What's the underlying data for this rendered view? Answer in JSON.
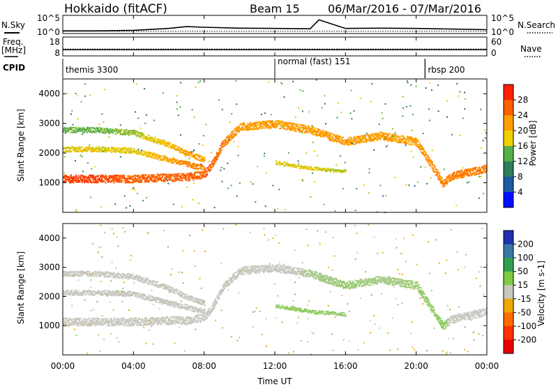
{
  "header": {
    "title": "Hokkaido (fitACF)",
    "beam_label": "Beam 15",
    "date_range": "06/Mar/2016 - 07/Mar/2016"
  },
  "labels": {
    "nsky": "N.Sky",
    "freq": "Freq.",
    "freq_unit": "[MHz]",
    "cpid": "CPID",
    "nsearch": "N.Search",
    "nave": "Nave",
    "slant_range": "Slant Range [km]",
    "time_axis": "Time UT"
  },
  "chart_data": [
    {
      "type": "line",
      "panel": "noise",
      "left_ticks": [
        "10^5",
        "10^0"
      ],
      "right_ticks": [
        "10^5",
        "10^0"
      ],
      "x": [
        "00:00",
        "02:00",
        "04:00",
        "06:00",
        "07:00",
        "08:00",
        "10:00",
        "12:00",
        "14:00",
        "14:30",
        "16:00",
        "18:00",
        "20:00",
        "22:00",
        "24:00"
      ],
      "series": [
        {
          "name": "N.Sky",
          "values": [
            0.4,
            0.4,
            0.6,
            1.2,
            1.8,
            1.6,
            1.3,
            1.2,
            1.1,
            4.0,
            1.2,
            1.3,
            1.2,
            1.0,
            0.8
          ]
        },
        {
          "name": "N.Search",
          "values": [
            0.3,
            0.3,
            0.3,
            0.3,
            0.3,
            0.3,
            0.3,
            0.3,
            0.3,
            0.3,
            0.3,
            0.3,
            0.3,
            0.3,
            0.3
          ]
        }
      ]
    },
    {
      "type": "line",
      "panel": "frequency",
      "left_ticks": [
        "18",
        "8"
      ],
      "right_ticks": [
        "60",
        "0"
      ],
      "series": [
        {
          "name": "Freq.",
          "value_mhz": 11
        },
        {
          "name": "Nave",
          "value": 20
        }
      ]
    },
    {
      "type": "table",
      "panel": "cpid",
      "segments": [
        {
          "start": "00:00",
          "end": "12:00",
          "label": "themis 3300"
        },
        {
          "start": "12:00",
          "end": "20:30",
          "label": "normal (fast) 151"
        },
        {
          "start": "20:30",
          "end": "24:00",
          "label": "rbsp 200"
        }
      ]
    },
    {
      "type": "heatmap",
      "panel": "power",
      "ylabel": "Slant Range [km]",
      "ylim": [
        0,
        4500
      ],
      "yticks": [
        "1000",
        "2000",
        "3000",
        "4000"
      ],
      "colorbar_label": "Power [dB]",
      "colorbar_ticks": [
        "4",
        "8",
        "12",
        "16",
        "20",
        "24",
        "28"
      ],
      "colorbar_colors": [
        "#0010ff",
        "#1e5aa0",
        "#2f7d5a",
        "#55b048",
        "#f0d000",
        "#ffa000",
        "#ff6000",
        "#ff2000"
      ],
      "x": [
        "00:00",
        "02:00",
        "04:00",
        "06:00",
        "07:00",
        "08:00",
        "08:30",
        "09:00",
        "10:00",
        "11:00",
        "12:00",
        "14:00",
        "16:00",
        "18:00",
        "20:00",
        "21:30",
        "22:00",
        "24:00"
      ],
      "bands": [
        {
          "name": "main",
          "range_km": [
            1150,
            1150,
            1150,
            1200,
            1200,
            1300,
            1700,
            2300,
            2900,
            2950,
            3000,
            2800,
            2400,
            2600,
            2400,
            1000,
            1250,
            1500
          ],
          "power_db": [
            28,
            28,
            26,
            26,
            26,
            26,
            26,
            24,
            22,
            22,
            22,
            22,
            22,
            22,
            22,
            24,
            24,
            24
          ]
        },
        {
          "name": "upper",
          "range_km": [
            2800,
            2800,
            2700,
            2300,
            2000,
            1800,
            null,
            null,
            null,
            null,
            null,
            null,
            null,
            null,
            null,
            null,
            null,
            null
          ],
          "power_db": [
            14,
            14,
            16,
            20,
            22,
            22,
            null,
            null,
            null,
            null,
            null,
            null,
            null,
            null,
            null,
            null,
            null,
            null
          ]
        },
        {
          "name": "mid",
          "range_km": [
            2150,
            2150,
            2100,
            1800,
            1650,
            1500,
            null,
            null,
            null,
            null,
            null,
            null,
            null,
            null,
            null,
            null,
            null,
            null
          ],
          "power_db": [
            18,
            18,
            18,
            22,
            24,
            24,
            null,
            null,
            null,
            null,
            null,
            null,
            null,
            null,
            null,
            null,
            null,
            null
          ]
        },
        {
          "name": "lower",
          "range_km": [
            null,
            null,
            null,
            null,
            null,
            null,
            null,
            null,
            null,
            null,
            1700,
            1500,
            1400,
            null,
            null,
            null,
            null,
            null
          ],
          "power_db": [
            null,
            null,
            null,
            null,
            null,
            null,
            null,
            null,
            null,
            null,
            18,
            18,
            16,
            null,
            null,
            null,
            null,
            null
          ]
        }
      ]
    },
    {
      "type": "heatmap",
      "panel": "velocity",
      "ylabel": "Slant Range [km]",
      "ylim": [
        0,
        4500
      ],
      "yticks": [
        "1000",
        "2000",
        "3000",
        "4000"
      ],
      "colorbar_label": "Velocity [m s-1]",
      "colorbar_ticks": [
        "200",
        "100",
        "50",
        "15",
        "-15",
        "-50",
        "-100",
        "-200"
      ],
      "colorbar_colors": [
        "#2030b0",
        "#3a78a8",
        "#30a050",
        "#7ccc40",
        "#c8c8c0",
        "#f0a800",
        "#ff6a00",
        "#ff3000",
        "#e80000"
      ],
      "x": [
        "00:00",
        "02:00",
        "04:00",
        "06:00",
        "07:00",
        "08:00",
        "08:30",
        "09:00",
        "10:00",
        "11:00",
        "12:00",
        "14:00",
        "16:00",
        "18:00",
        "20:00",
        "21:30",
        "22:00",
        "24:00"
      ],
      "bands": [
        {
          "name": "main",
          "range_km": [
            1150,
            1150,
            1150,
            1200,
            1200,
            1300,
            1700,
            2300,
            2900,
            2950,
            3000,
            2800,
            2400,
            2600,
            2400,
            1000,
            1250,
            1500
          ],
          "velocity_ms": [
            0,
            0,
            0,
            0,
            0,
            0,
            0,
            0,
            0,
            0,
            0,
            20,
            30,
            20,
            30,
            40,
            0,
            0
          ]
        },
        {
          "name": "upper",
          "range_km": [
            2800,
            2800,
            2700,
            2300,
            2000,
            1800,
            null,
            null,
            null,
            null,
            null,
            null,
            null,
            null,
            null,
            null,
            null,
            null
          ],
          "velocity_ms": [
            0,
            0,
            0,
            0,
            0,
            0,
            null,
            null,
            null,
            null,
            null,
            null,
            null,
            null,
            null,
            null,
            null,
            null
          ]
        },
        {
          "name": "mid",
          "range_km": [
            2150,
            2150,
            2100,
            1800,
            1650,
            1500,
            null,
            null,
            null,
            null,
            null,
            null,
            null,
            null,
            null,
            null,
            null,
            null
          ],
          "velocity_ms": [
            0,
            0,
            0,
            0,
            0,
            0,
            null,
            null,
            null,
            null,
            null,
            null,
            null,
            null,
            null,
            null,
            null,
            null
          ]
        },
        {
          "name": "lower",
          "range_km": [
            null,
            null,
            null,
            null,
            null,
            null,
            null,
            null,
            null,
            null,
            1700,
            1500,
            1400,
            null,
            null,
            null,
            null,
            null
          ],
          "velocity_ms": [
            null,
            null,
            null,
            null,
            null,
            null,
            null,
            null,
            null,
            null,
            40,
            40,
            30,
            null,
            null,
            null,
            null,
            null
          ]
        }
      ]
    }
  ],
  "time_ticks": [
    "00:00",
    "04:00",
    "08:00",
    "12:00",
    "16:00",
    "20:00",
    "00:00"
  ]
}
